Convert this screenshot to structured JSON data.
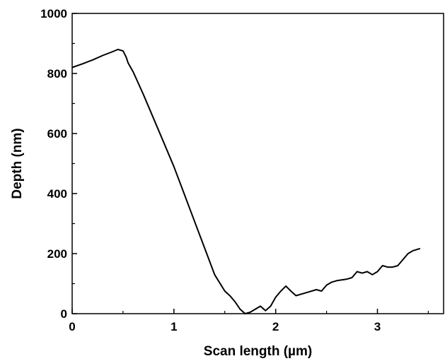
{
  "chart_data": {
    "type": "line",
    "title": "",
    "xlabel": "Scan length (µm)",
    "ylabel": "Depth (nm)",
    "xlim": [
      0,
      3.65
    ],
    "ylim": [
      0,
      1000
    ],
    "xticks": [
      0,
      1,
      2,
      3
    ],
    "yticks": [
      0,
      200,
      400,
      600,
      800,
      1000
    ],
    "grid": false,
    "legend": "none",
    "line_color": "#000000",
    "series": [
      {
        "x": [
          0,
          0.1,
          0.2,
          0.3,
          0.4,
          0.45,
          0.5,
          0.53,
          0.55,
          0.6,
          0.7,
          0.8,
          0.9,
          1.0,
          1.1,
          1.2,
          1.3,
          1.4,
          1.5,
          1.55,
          1.6,
          1.65,
          1.7,
          1.75,
          1.8,
          1.85,
          1.9,
          1.95,
          2.0,
          2.05,
          2.1,
          2.15,
          2.2,
          2.3,
          2.4,
          2.45,
          2.5,
          2.55,
          2.6,
          2.7,
          2.75,
          2.8,
          2.85,
          2.9,
          2.95,
          3.0,
          3.05,
          3.1,
          3.15,
          3.2,
          3.25,
          3.3,
          3.35,
          3.42
        ],
        "y": [
          820,
          832,
          845,
          860,
          873,
          880,
          875,
          855,
          835,
          805,
          730,
          650,
          570,
          490,
          400,
          310,
          220,
          130,
          75,
          60,
          40,
          15,
          0,
          5,
          15,
          25,
          10,
          25,
          55,
          75,
          92,
          75,
          60,
          70,
          80,
          75,
          95,
          105,
          110,
          115,
          120,
          140,
          135,
          140,
          130,
          140,
          160,
          155,
          155,
          160,
          180,
          200,
          210,
          217
        ]
      }
    ]
  }
}
